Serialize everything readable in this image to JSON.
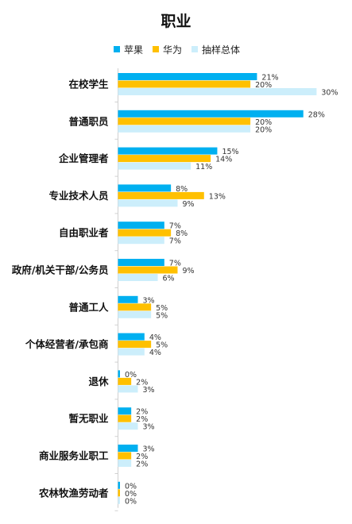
{
  "chart_data": {
    "type": "bar",
    "orientation": "horizontal",
    "title": "职业",
    "categories": [
      "在校学生",
      "普通职员",
      "企业管理者",
      "专业技术人员",
      "自由职业者",
      "政府/机关干部/公务员",
      "普通工人",
      "个体经营者/承包商",
      "退休",
      "暂无职业",
      "商业服务业职工",
      "农林牧渔劳动者"
    ],
    "series": [
      {
        "name": "苹果",
        "color": "#00B0F0",
        "values": [
          21,
          28,
          15,
          8,
          7,
          7,
          3,
          4,
          0,
          2,
          3,
          0
        ]
      },
      {
        "name": "华为",
        "color": "#FFC000",
        "values": [
          20,
          20,
          14,
          13,
          8,
          9,
          5,
          5,
          2,
          2,
          2,
          0
        ]
      },
      {
        "name": "抽样总体",
        "color": "#CCEEFB",
        "values": [
          30,
          20,
          11,
          9,
          7,
          6,
          5,
          4,
          3,
          3,
          2,
          0
        ]
      }
    ],
    "value_suffix": "%",
    "xlim": [
      0,
      30
    ],
    "grid": false,
    "legend": "top"
  }
}
